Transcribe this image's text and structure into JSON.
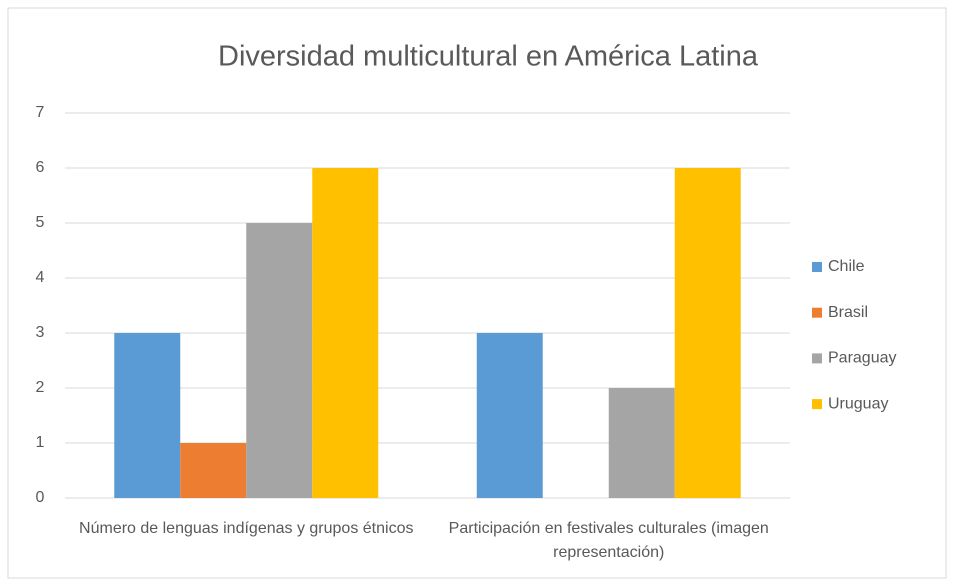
{
  "chart_data": {
    "type": "bar",
    "title": "Diversidad multicultural en América Latina",
    "categories": [
      "Número de lenguas indígenas y grupos étnicos",
      "Participación en festivales culturales (imagen representación)"
    ],
    "series": [
      {
        "name": "Chile",
        "color": "#5b9bd5",
        "values": [
          3,
          3
        ]
      },
      {
        "name": "Brasil",
        "color": "#ed7d31",
        "values": [
          1,
          0
        ]
      },
      {
        "name": "Paraguay",
        "color": "#a5a5a5",
        "values": [
          5,
          2
        ]
      },
      {
        "name": "Uruguay",
        "color": "#ffc000",
        "values": [
          6,
          6
        ]
      }
    ],
    "ylim": [
      0,
      7
    ],
    "yticks": [
      0,
      1,
      2,
      3,
      4,
      5,
      6,
      7
    ],
    "grid": true,
    "legend": "right"
  }
}
